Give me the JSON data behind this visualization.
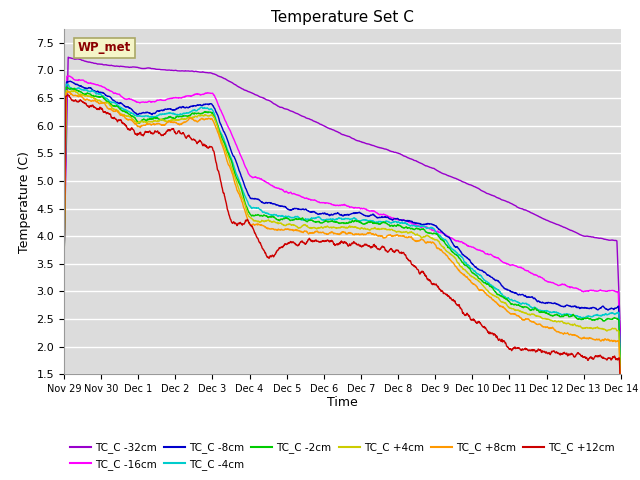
{
  "title": "Temperature Set C",
  "xlabel": "Time",
  "ylabel": "Temperature (C)",
  "ylim": [
    1.5,
    7.75
  ],
  "background_color": "#dcdcdc",
  "wp_met_label": "WP_met",
  "wp_met_color": "#8B0000",
  "wp_met_bg": "#f5f5c8",
  "series": [
    {
      "label": "TC_C -32cm",
      "color": "#9900cc"
    },
    {
      "label": "TC_C -16cm",
      "color": "#ff00ff"
    },
    {
      "label": "TC_C -8cm",
      "color": "#0000cc"
    },
    {
      "label": "TC_C -4cm",
      "color": "#00cccc"
    },
    {
      "label": "TC_C -2cm",
      "color": "#00cc00"
    },
    {
      "label": "TC_C +4cm",
      "color": "#cccc00"
    },
    {
      "label": "TC_C +8cm",
      "color": "#ff9900"
    },
    {
      "label": "TC_C +12cm",
      "color": "#cc0000"
    }
  ],
  "xtick_labels": [
    "Nov 29",
    "Nov 30",
    "Dec 1",
    "Dec 2",
    "Dec 3",
    "Dec 4",
    "Dec 5",
    "Dec 6",
    "Dec 7",
    "Dec 8",
    "Dec 9",
    "Dec 10",
    "Dec 11",
    "Dec 12",
    "Dec 13",
    "Dec 14"
  ],
  "yticks": [
    1.5,
    2.0,
    2.5,
    3.0,
    3.5,
    4.0,
    4.5,
    5.0,
    5.5,
    6.0,
    6.5,
    7.0,
    7.5
  ],
  "n_points": 2000
}
